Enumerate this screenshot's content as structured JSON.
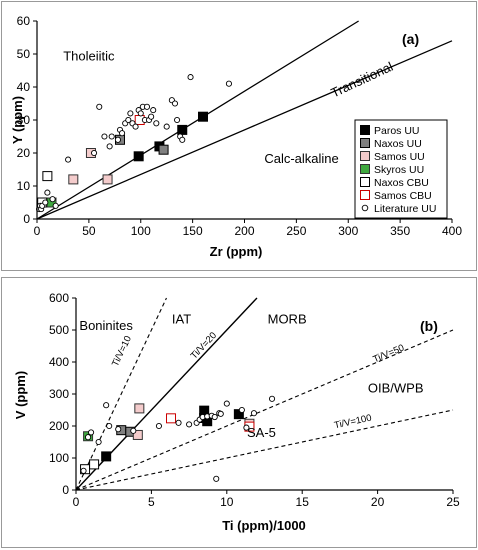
{
  "chart_data": [
    {
      "type": "scatter",
      "panel_label": "(a)",
      "xlabel": "Zr (ppm)",
      "ylabel": "Y (ppm)",
      "xlim": [
        0,
        400
      ],
      "ylim": [
        0,
        60
      ],
      "xticks": [
        0,
        50,
        100,
        150,
        200,
        250,
        300,
        350,
        400
      ],
      "yticks": [
        0,
        10,
        20,
        30,
        40,
        50,
        60
      ],
      "grid": false,
      "legend_position": "right",
      "legend": [
        {
          "label": "Paros UU",
          "marker": "square",
          "fill": "#000000",
          "stroke": "#000000"
        },
        {
          "label": "Naxos UU",
          "marker": "square",
          "fill": "#808080",
          "stroke": "#000000"
        },
        {
          "label": "Samos UU",
          "marker": "square",
          "fill": "#f4cccc",
          "stroke": "#333333"
        },
        {
          "label": "Skyros UU",
          "marker": "square",
          "fill": "#3fa83f",
          "stroke": "#333333"
        },
        {
          "label": "Naxos CBU",
          "marker": "square",
          "fill": "#ffffff",
          "stroke": "#000000"
        },
        {
          "label": "Samos CBU",
          "marker": "square",
          "fill": "#ffffff",
          "stroke": "#cc0000"
        },
        {
          "label": "Literature UU",
          "marker": "circle",
          "fill": "#ffffff",
          "stroke": "#000000"
        }
      ],
      "field_labels": [
        {
          "text": "Tholeiitic",
          "x": 50,
          "y": 48,
          "rotate": 0
        },
        {
          "text": "Transitional",
          "x": 315,
          "y": 41,
          "rotate": -25
        },
        {
          "text": "Calc-alkaline",
          "x": 255,
          "y": 17,
          "rotate": 0
        }
      ],
      "boundary_lines": [
        {
          "x": [
            0,
            310
          ],
          "y": [
            0,
            60
          ],
          "dash": false
        },
        {
          "x": [
            0,
            400
          ],
          "y": [
            0,
            54
          ],
          "dash": false
        }
      ],
      "series": [
        {
          "name": "Paros UU",
          "points": [
            [
              98,
              19
            ],
            [
              118,
              22
            ],
            [
              140,
              27
            ],
            [
              160,
              31
            ]
          ]
        },
        {
          "name": "Naxos UU",
          "points": [
            [
              80,
              24
            ],
            [
              122,
              21
            ]
          ]
        },
        {
          "name": "Samos UU",
          "points": [
            [
              35,
              12
            ],
            [
              52,
              20
            ],
            [
              68,
              12
            ]
          ]
        },
        {
          "name": "Skyros UU",
          "points": [
            [
              14,
              5
            ]
          ]
        },
        {
          "name": "Naxos CBU",
          "points": [
            [
              10,
              13
            ],
            [
              5,
              5
            ]
          ]
        },
        {
          "name": "Samos CBU",
          "points": [
            [
              99,
              30
            ]
          ]
        },
        {
          "name": "Literature UU",
          "points": [
            [
              2,
              3
            ],
            [
              3,
              4
            ],
            [
              4,
              3
            ],
            [
              5,
              4
            ],
            [
              8,
              5
            ],
            [
              10,
              8
            ],
            [
              15,
              6
            ],
            [
              18,
              4
            ],
            [
              30,
              18
            ],
            [
              55,
              20
            ],
            [
              60,
              34
            ],
            [
              65,
              25
            ],
            [
              70,
              22
            ],
            [
              72,
              25
            ],
            [
              78,
              24
            ],
            [
              80,
              27
            ],
            [
              82,
              26
            ],
            [
              85,
              29
            ],
            [
              88,
              30
            ],
            [
              90,
              32
            ],
            [
              92,
              29
            ],
            [
              95,
              28
            ],
            [
              98,
              33
            ],
            [
              100,
              32
            ],
            [
              102,
              34
            ],
            [
              104,
              30
            ],
            [
              106,
              34
            ],
            [
              108,
              30
            ],
            [
              110,
              31
            ],
            [
              112,
              33
            ],
            [
              115,
              29
            ],
            [
              125,
              28
            ],
            [
              130,
              36
            ],
            [
              133,
              35
            ],
            [
              135,
              30
            ],
            [
              138,
              25
            ],
            [
              140,
              24
            ],
            [
              148,
              43
            ],
            [
              185,
              41
            ]
          ]
        }
      ]
    },
    {
      "type": "scatter",
      "panel_label": "(b)",
      "xlabel": "Ti (ppm)/1000",
      "ylabel": "V (ppm)",
      "xlim": [
        0,
        25
      ],
      "ylim": [
        0,
        600
      ],
      "xticks": [
        0,
        5,
        10,
        15,
        20,
        25
      ],
      "yticks": [
        0,
        100,
        200,
        300,
        400,
        500,
        600
      ],
      "grid": false,
      "field_labels": [
        {
          "text": "Boninites",
          "x": 2.0,
          "y": 500,
          "rotate": 0
        },
        {
          "text": "IAT",
          "x": 7.0,
          "y": 520,
          "rotate": 0
        },
        {
          "text": "MORB",
          "x": 14.0,
          "y": 520,
          "rotate": 0
        },
        {
          "text": "OIB/WPB",
          "x": 21.2,
          "y": 305,
          "rotate": 0
        },
        {
          "text": "SA-5",
          "x": 12.3,
          "y": 165,
          "rotate": 0
        }
      ],
      "ratio_lines": [
        {
          "label": "Ti/V=10",
          "slope": 100,
          "dash": true,
          "label_x": 3.2,
          "label_y": 430
        },
        {
          "label": "Ti/V=20",
          "slope": 50,
          "dash": false,
          "label_x": 8.6,
          "label_y": 445
        },
        {
          "label": "Ti/V=50",
          "slope": 20,
          "dash": true,
          "label_x": 20.8,
          "label_y": 418
        },
        {
          "label": "Ti/V=100",
          "slope": 10,
          "dash": true,
          "label_x": 18.4,
          "label_y": 205
        }
      ],
      "series": [
        {
          "name": "Paros UU",
          "points": [
            [
              2.0,
              105
            ],
            [
              8.5,
              248
            ],
            [
              8.5,
              225
            ],
            [
              8.7,
              215
            ],
            [
              10.8,
              237
            ]
          ]
        },
        {
          "name": "Naxos UU",
          "points": [
            [
              3.0,
              187
            ],
            [
              3.6,
              182
            ]
          ]
        },
        {
          "name": "Samos UU",
          "points": [
            [
              4.2,
              255
            ],
            [
              4.1,
              172
            ],
            [
              11.5,
              207
            ]
          ]
        },
        {
          "name": "Skyros UU",
          "points": [
            [
              0.8,
              168
            ]
          ]
        },
        {
          "name": "Naxos CBU",
          "points": [
            [
              0.6,
              65
            ],
            [
              1.2,
              80
            ]
          ]
        },
        {
          "name": "Samos CBU",
          "points": [
            [
              6.3,
              224
            ],
            [
              11.5,
              198
            ]
          ]
        },
        {
          "name": "Literature UU",
          "points": [
            [
              0.5,
              60
            ],
            [
              0.8,
              165
            ],
            [
              1.0,
              180
            ],
            [
              1.5,
              150
            ],
            [
              2.0,
              265
            ],
            [
              2.2,
              200
            ],
            [
              2.8,
              190
            ],
            [
              3.8,
              185
            ],
            [
              5.5,
              200
            ],
            [
              6.8,
              210
            ],
            [
              7.5,
              205
            ],
            [
              8.0,
              210
            ],
            [
              8.2,
              220
            ],
            [
              8.4,
              228
            ],
            [
              8.7,
              230
            ],
            [
              9.0,
              232
            ],
            [
              9.2,
              228
            ],
            [
              9.5,
              240
            ],
            [
              9.6,
              238
            ],
            [
              10.0,
              270
            ],
            [
              11.0,
              250
            ],
            [
              11.3,
              195
            ],
            [
              11.8,
              240
            ],
            [
              13.0,
              285
            ],
            [
              9.3,
              35
            ]
          ]
        }
      ]
    }
  ]
}
